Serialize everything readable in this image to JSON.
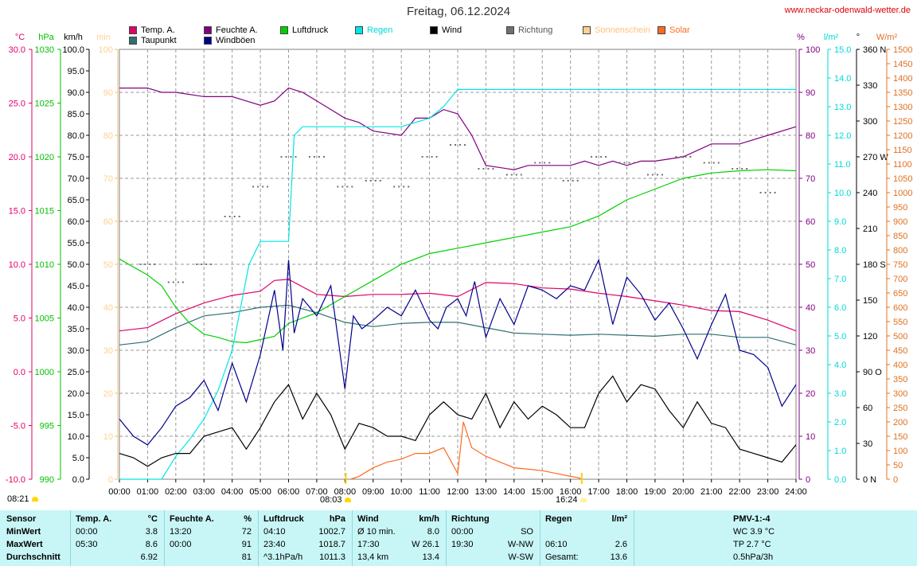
{
  "title": "Freitag, 06.12.2024",
  "website": "www.neckar-odenwald-wetter.de",
  "legend": [
    {
      "label": "Temp. A.",
      "color": "#e0006a"
    },
    {
      "label": "Taupunkt",
      "color": "#2f6f6f"
    },
    {
      "label": "Feuchte A.",
      "color": "#800080"
    },
    {
      "label": "Windböen",
      "color": "#00008b"
    },
    {
      "label": "Luftdruck",
      "color": "#00d000"
    },
    {
      "label": "Regen",
      "color": "#00e6e6"
    },
    {
      "label": "Wind",
      "color": "#000000"
    },
    {
      "label": "Richtung",
      "color": "#707070"
    },
    {
      "label": "Sonnenschein",
      "color": "#ffd090"
    },
    {
      "label": "Solar",
      "color": "#ff6a20"
    }
  ],
  "sun": {
    "sunrise": "08:21",
    "sunset": "16:24",
    "rise_marker": "08:03"
  },
  "chart_data": {
    "type": "line",
    "x_label": "Uhrzeit",
    "x_ticks": [
      "00:00",
      "01:00",
      "02:00",
      "03:00",
      "04:00",
      "05:00",
      "06:00",
      "07:00",
      "08:00",
      "09:00",
      "10:00",
      "11:00",
      "12:00",
      "13:00",
      "14:00",
      "15:00",
      "16:00",
      "17:00",
      "18:00",
      "19:00",
      "20:00",
      "21:00",
      "22:00",
      "23:00",
      "24:00"
    ],
    "axes": {
      "temp": {
        "unit": "°C",
        "color": "#e0006a",
        "range": [
          -10,
          30
        ],
        "ticks": [
          "30.0",
          "25.0",
          "20.0",
          "15.0",
          "10.0",
          "5.0",
          "0.0",
          "-5.0",
          "-10.0"
        ]
      },
      "pressure": {
        "unit": "hPa",
        "color": "#00c000",
        "range": [
          990,
          1030
        ],
        "ticks": [
          "1030",
          "1025",
          "1020",
          "1015",
          "1010",
          "1005",
          "1000",
          "995",
          "990"
        ]
      },
      "wind": {
        "unit": "km/h",
        "color": "#000000",
        "range": [
          0,
          100
        ],
        "ticks": [
          "100.0",
          "95.0",
          "90.0",
          "85.0",
          "80.0",
          "75.0",
          "70.0",
          "65.0",
          "60.0",
          "55.0",
          "50.0",
          "45.0",
          "40.0",
          "35.0",
          "30.0",
          "25.0",
          "20.0",
          "15.0",
          "10.0",
          "5.0",
          "0.0"
        ]
      },
      "sunshine": {
        "unit": "min",
        "color": "#ffd090",
        "range": [
          0,
          100
        ],
        "ticks": [
          "100",
          "90",
          "80",
          "70",
          "60",
          "50",
          "40",
          "30",
          "20",
          "10",
          "0"
        ]
      },
      "humidity": {
        "unit": "%",
        "color": "#800080",
        "range": [
          0,
          100
        ],
        "ticks": [
          "100",
          "90",
          "80",
          "70",
          "60",
          "50",
          "40",
          "30",
          "20",
          "10",
          "0"
        ]
      },
      "rain": {
        "unit": "l/m²",
        "color": "#00d8d8",
        "range": [
          0,
          15
        ],
        "ticks": [
          "15.0",
          "14.0",
          "13.0",
          "12.0",
          "11.0",
          "10.0",
          "9.0",
          "8.0",
          "7.0",
          "6.0",
          "5.0",
          "4.0",
          "3.0",
          "2.0",
          "1.0",
          "0.0"
        ]
      },
      "direction": {
        "unit": "°",
        "color": "#000000",
        "range": [
          0,
          360
        ],
        "ticks": [
          "360 N",
          "330",
          "300",
          "270 W",
          "240",
          "210",
          "180 S",
          "150",
          "120",
          "90 O",
          "60",
          "30",
          "0 N"
        ]
      },
      "solar": {
        "unit": "W/m²",
        "color": "#e07020",
        "range": [
          0,
          1500
        ],
        "ticks": [
          "1500",
          "1450",
          "1400",
          "1350",
          "1300",
          "1250",
          "1200",
          "1150",
          "1100",
          "1050",
          "1000",
          "950",
          "900",
          "850",
          "800",
          "750",
          "700",
          "650",
          "600",
          "550",
          "500",
          "450",
          "400",
          "350",
          "300",
          "250",
          "200",
          "150",
          "100",
          "50",
          "0"
        ]
      }
    },
    "series": [
      {
        "name": "Temp. A.",
        "axis": "temp",
        "color": "#e0006a",
        "x": [
          0,
          1,
          2,
          3,
          4,
          5,
          5.5,
          6,
          7,
          8,
          9,
          10,
          11,
          12,
          13,
          14,
          15,
          16,
          17,
          18,
          19,
          20,
          21,
          22,
          23,
          24
        ],
        "y": [
          3.8,
          4.1,
          5.4,
          6.4,
          7.1,
          7.5,
          8.5,
          8.6,
          7.2,
          7.0,
          7.2,
          7.2,
          7.3,
          7.0,
          8.3,
          8.2,
          7.8,
          7.7,
          7.3,
          7.0,
          6.6,
          6.2,
          5.7,
          5.6,
          4.8,
          3.8
        ]
      },
      {
        "name": "Taupunkt",
        "axis": "temp",
        "color": "#2f6f6f",
        "x": [
          0,
          1,
          2,
          3,
          4,
          5,
          6,
          7,
          8,
          9,
          10,
          11,
          12,
          13,
          14,
          15,
          16,
          17,
          18,
          19,
          20,
          21,
          22,
          23,
          24
        ],
        "y": [
          2.5,
          2.8,
          4.1,
          5.2,
          5.5,
          6.0,
          6.2,
          5.5,
          4.6,
          4.2,
          4.5,
          4.6,
          4.6,
          4.1,
          3.6,
          3.5,
          3.4,
          3.5,
          3.4,
          3.3,
          3.5,
          3.5,
          3.2,
          3.2,
          2.5
        ]
      },
      {
        "name": "Feuchte A.",
        "axis": "humidity",
        "color": "#800080",
        "x": [
          0,
          1,
          1.5,
          2,
          3,
          4,
          4.5,
          5,
          5.5,
          6,
          6.5,
          7,
          8,
          8.5,
          9,
          10,
          10.5,
          11,
          11.5,
          12,
          12.5,
          13,
          14,
          14.5,
          15,
          16,
          16.5,
          17,
          17.5,
          18,
          18.5,
          19,
          20,
          21,
          22,
          23,
          24
        ],
        "y": [
          91,
          91,
          90,
          90,
          89,
          89,
          88,
          87,
          88,
          91,
          90,
          88,
          84,
          83,
          81,
          80,
          84,
          84,
          86,
          85,
          80,
          73,
          72,
          73,
          73,
          73,
          74,
          73,
          74,
          73,
          74,
          74,
          75,
          78,
          78,
          80,
          82
        ]
      },
      {
        "name": "Luftdruck",
        "axis": "pressure",
        "color": "#00d000",
        "x": [
          0,
          1,
          1.5,
          2,
          2.5,
          3,
          3.5,
          4,
          4.5,
          5,
          5.5,
          6,
          6.5,
          7,
          8,
          9,
          10,
          11,
          12,
          13,
          14,
          15,
          16,
          17,
          18,
          19,
          20,
          21,
          22,
          23,
          24
        ],
        "y": [
          1010.5,
          1009.0,
          1008.0,
          1006.0,
          1004.5,
          1003.5,
          1003.2,
          1002.8,
          1002.7,
          1003.0,
          1003.3,
          1004.5,
          1005.0,
          1005.5,
          1007.0,
          1008.5,
          1010.0,
          1011.0,
          1011.5,
          1012.0,
          1012.5,
          1013.0,
          1013.5,
          1014.5,
          1016.0,
          1017.0,
          1018.0,
          1018.5,
          1018.7,
          1018.8,
          1018.7
        ]
      },
      {
        "name": "Regen",
        "axis": "rain",
        "color": "#00e6e6",
        "x": [
          0,
          1,
          1.5,
          2,
          2.5,
          3,
          3.5,
          4,
          4.3,
          4.6,
          5,
          6,
          6.2,
          6.5,
          7,
          8,
          9,
          10,
          11,
          11.5,
          12,
          13,
          14,
          15,
          16,
          17,
          18,
          19,
          20,
          21,
          22,
          23,
          24
        ],
        "y": [
          0,
          0,
          0,
          0.8,
          1.4,
          2.1,
          3.1,
          4.5,
          6.0,
          7.5,
          8.3,
          8.3,
          12.0,
          12.3,
          12.3,
          12.3,
          12.3,
          12.3,
          12.6,
          13.0,
          13.6,
          13.6,
          13.6,
          13.6,
          13.6,
          13.6,
          13.6,
          13.6,
          13.6,
          13.6,
          13.6,
          13.6,
          13.6
        ]
      },
      {
        "name": "Windböen",
        "axis": "wind",
        "color": "#00008b",
        "x": [
          0,
          0.5,
          1,
          1.5,
          2,
          2.5,
          3,
          3.5,
          4,
          4.5,
          5,
          5.5,
          5.8,
          6,
          6.2,
          6.5,
          7,
          7.5,
          8,
          8.3,
          8.6,
          9,
          9.5,
          10,
          10.5,
          11,
          11.3,
          11.6,
          12,
          12.3,
          12.6,
          13,
          13.5,
          14,
          14.5,
          15,
          15.5,
          16,
          16.5,
          17,
          17.5,
          18,
          18.5,
          19,
          19.5,
          20,
          20.5,
          21,
          21.5,
          22,
          22.5,
          23,
          23.5,
          24
        ],
        "y": [
          14,
          10,
          8,
          12,
          17,
          19,
          23,
          16,
          27,
          18,
          29,
          44,
          30,
          51,
          34,
          42,
          38,
          45,
          21,
          38,
          35,
          37,
          40,
          38,
          44,
          37,
          35,
          40,
          42,
          38,
          46,
          33,
          42,
          36,
          45,
          44,
          42,
          45,
          44,
          51,
          36,
          47,
          43,
          37,
          41,
          35,
          28,
          36,
          43,
          30,
          29,
          26,
          17,
          22
        ]
      },
      {
        "name": "Wind",
        "axis": "wind",
        "color": "#000000",
        "x": [
          0,
          0.5,
          1,
          1.5,
          2,
          2.5,
          3,
          3.5,
          4,
          4.5,
          5,
          5.5,
          6,
          6.5,
          7,
          7.5,
          8,
          8.5,
          9,
          9.5,
          10,
          10.5,
          11,
          11.5,
          12,
          12.5,
          13,
          13.5,
          14,
          14.5,
          15,
          15.5,
          16,
          16.5,
          17,
          17.5,
          18,
          18.5,
          19,
          19.5,
          20,
          20.5,
          21,
          21.5,
          22,
          22.5,
          23,
          23.5,
          24
        ],
        "y": [
          6,
          5,
          3,
          5,
          6,
          6,
          10,
          11,
          12,
          7,
          12,
          18,
          22,
          14,
          20,
          15,
          7,
          13,
          12,
          10,
          10,
          9,
          15,
          18,
          15,
          14,
          20,
          12,
          18,
          14,
          17,
          15,
          12,
          12,
          20,
          24,
          18,
          22,
          21,
          16,
          12,
          18,
          13,
          12,
          7,
          6,
          5,
          4,
          8
        ]
      },
      {
        "name": "Solar",
        "axis": "solar",
        "color": "#ff6a20",
        "x": [
          8.2,
          8.5,
          9,
          9.5,
          10,
          10.5,
          11,
          11.5,
          12,
          12.2,
          12.3,
          12.5,
          13,
          13.5,
          14,
          14.5,
          15,
          15.5,
          16,
          16.3,
          16.4
        ],
        "y": [
          0,
          10,
          40,
          60,
          70,
          90,
          90,
          110,
          20,
          200,
          170,
          110,
          80,
          60,
          40,
          35,
          30,
          20,
          10,
          5,
          0
        ]
      },
      {
        "name": "Richtung",
        "axis": "direction",
        "color": "#707070",
        "x": [
          1,
          2,
          3,
          4,
          5,
          6,
          7,
          8,
          9,
          10,
          11,
          12,
          13,
          14,
          15,
          16,
          17,
          18,
          19,
          20,
          21,
          22,
          23
        ],
        "y": [
          180,
          165,
          180,
          220,
          245,
          270,
          270,
          245,
          250,
          245,
          270,
          280,
          260,
          255,
          265,
          250,
          270,
          265,
          255,
          270,
          265,
          260,
          240
        ]
      }
    ]
  },
  "table": {
    "rows": [
      "Sensor",
      "MinWert",
      "MaxWert",
      "Durchschnitt"
    ],
    "columns": [
      {
        "header": "Temp. A.",
        "unit": "°C",
        "min": [
          "00:00",
          "3.8"
        ],
        "max": [
          "05:30",
          "8.6"
        ],
        "avg": [
          "",
          "6.92"
        ]
      },
      {
        "header": "Feuchte A.",
        "unit": "%",
        "min": [
          "13:20",
          "72"
        ],
        "max": [
          "00:00",
          "91"
        ],
        "avg": [
          "",
          "81"
        ]
      },
      {
        "header": "Luftdruck",
        "unit": "hPa",
        "min": [
          "04:10",
          "1002.7"
        ],
        "max": [
          "23:40",
          "1018.7"
        ],
        "avg": [
          "^3.1hPa/h",
          "1011.3"
        ]
      },
      {
        "header": "Wind",
        "unit": "km/h",
        "min": [
          "Ø 10 min.",
          "8.0"
        ],
        "max": [
          "17:30",
          "W 26.1"
        ],
        "avg": [
          "13,4 km",
          "13.4"
        ]
      },
      {
        "header": "Richtung",
        "unit": "",
        "min": [
          "00:00",
          "SO"
        ],
        "max": [
          "19:30",
          "W-NW"
        ],
        "avg": [
          "",
          "W-SW"
        ]
      },
      {
        "header": "Regen",
        "unit": "l/m²",
        "min": [
          "",
          ""
        ],
        "max": [
          "06:10",
          "2.6"
        ],
        "avg": [
          "Gesamt:",
          "13.6"
        ]
      },
      {
        "header": "PMV-1:-4",
        "unit": "",
        "min": [
          "",
          "WC 3.9 °C"
        ],
        "max": [
          "",
          "TP 2.7 °C"
        ],
        "avg": [
          "",
          "0.5hPa/3h"
        ]
      }
    ]
  }
}
